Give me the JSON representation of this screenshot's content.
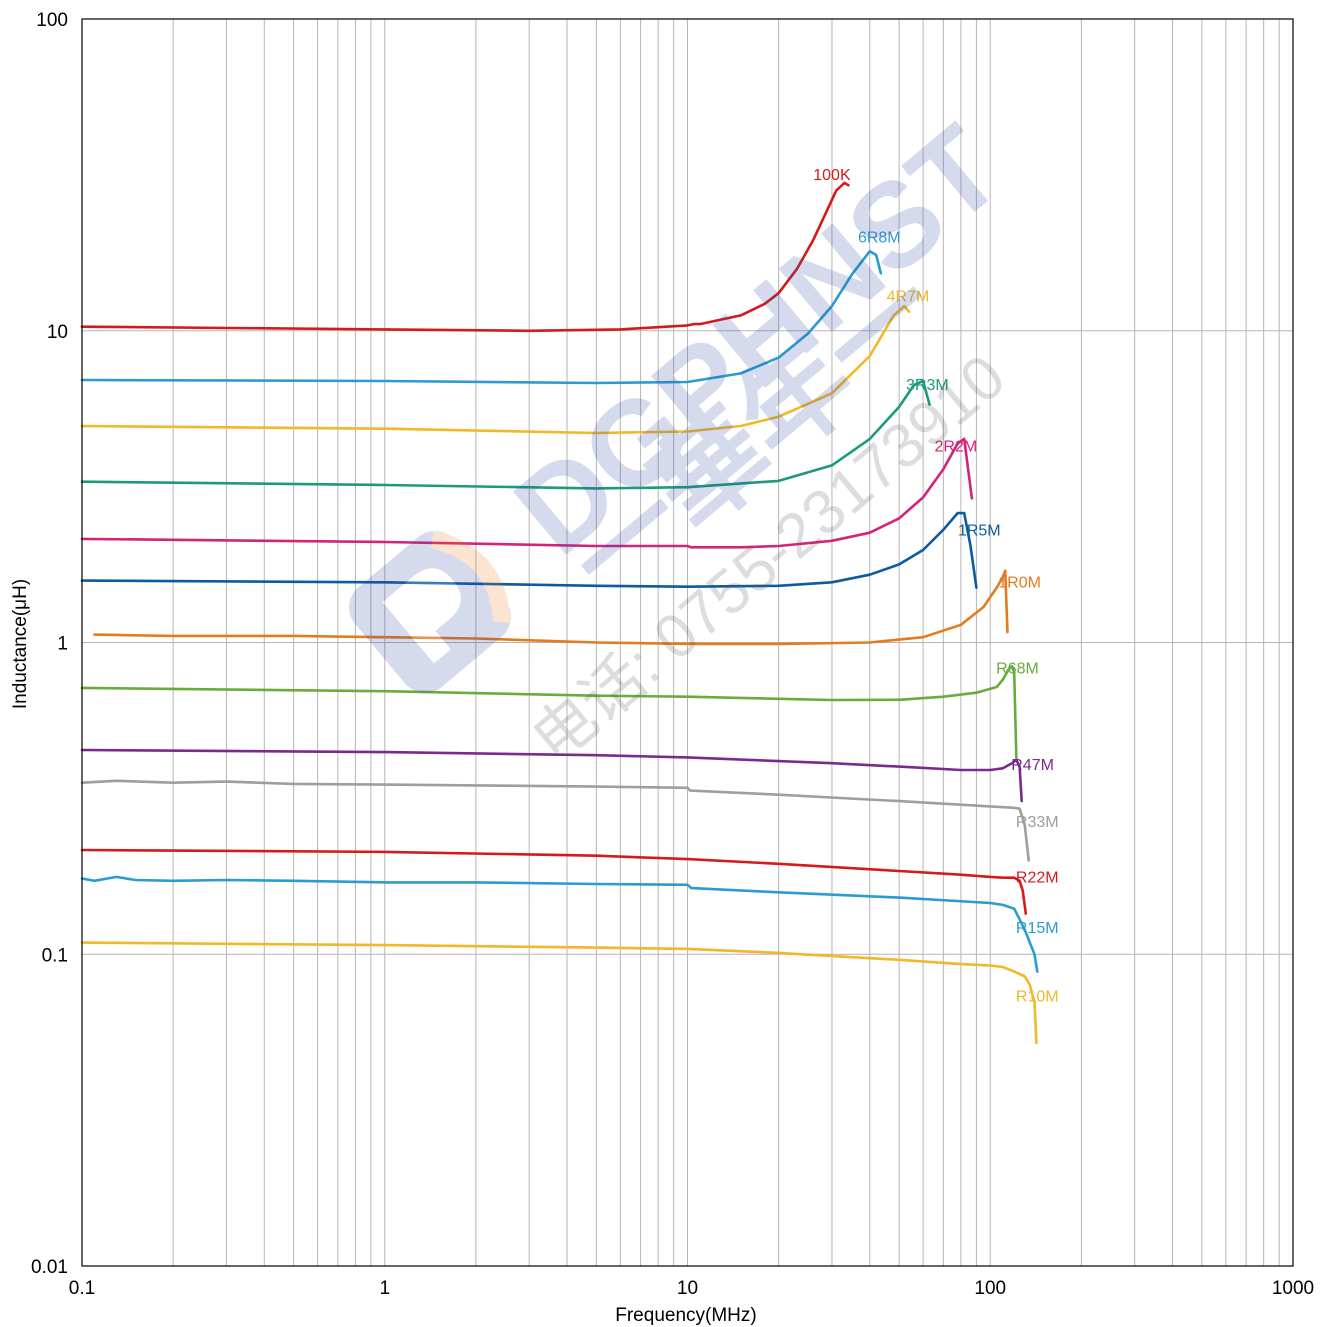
{
  "chart_data": {
    "type": "line",
    "xscale": "log",
    "yscale": "log",
    "title": "",
    "xlabel": "Frequency(MHz)",
    "ylabel": "Inductance(μH)",
    "xlim": [
      0.1,
      1000
    ],
    "ylim": [
      0.01,
      100
    ],
    "grid": true,
    "legend": "inline labels at curve ends",
    "x_ticks": [
      {
        "value": 0.1,
        "label": "0.1"
      },
      {
        "value": 1,
        "label": "1"
      },
      {
        "value": 10,
        "label": "10"
      },
      {
        "value": 100,
        "label": "100"
      },
      {
        "value": 1000,
        "label": "1000"
      }
    ],
    "y_ticks": [
      {
        "value": 0.01,
        "label": "0.01"
      },
      {
        "value": 0.1,
        "label": "0.1"
      },
      {
        "value": 1,
        "label": "1"
      },
      {
        "value": 10,
        "label": "10"
      },
      {
        "value": 100,
        "label": "100"
      }
    ],
    "series": [
      {
        "name": "100K",
        "color": "#d7191c",
        "label_at": [
          30,
          30.5
        ],
        "x": [
          0.1,
          1,
          3,
          6,
          10,
          10.5,
          11,
          12,
          15,
          18,
          20,
          23,
          26,
          29,
          31,
          33,
          34
        ],
        "y": [
          10.3,
          10.1,
          10.0,
          10.1,
          10.4,
          10.5,
          10.5,
          10.7,
          11.2,
          12.2,
          13.2,
          15.8,
          19.5,
          24.5,
          28.2,
          29.8,
          29.3
        ]
      },
      {
        "name": "6R8M",
        "color": "#2b9bd3",
        "label_at": [
          43,
          19.2
        ],
        "x": [
          0.1,
          1,
          5,
          10,
          15,
          20,
          25,
          30,
          35,
          40,
          42,
          43.5
        ],
        "y": [
          6.95,
          6.9,
          6.8,
          6.85,
          7.3,
          8.2,
          9.8,
          12.0,
          15.2,
          18.0,
          17.5,
          15.3
        ]
      },
      {
        "name": "4R7M",
        "color": "#f1b828",
        "label_at": [
          53.5,
          12.4
        ],
        "x": [
          0.1,
          1,
          5,
          10,
          15,
          20,
          30,
          40,
          48,
          52,
          54
        ],
        "y": [
          4.95,
          4.85,
          4.7,
          4.75,
          4.95,
          5.3,
          6.3,
          8.3,
          11.2,
          12.0,
          11.5
        ]
      },
      {
        "name": "3R3M",
        "color": "#1c9a7c",
        "label_at": [
          62,
          6.45
        ],
        "x": [
          0.1,
          1,
          5,
          10,
          20,
          30,
          40,
          50,
          56,
          60,
          63
        ],
        "y": [
          3.28,
          3.2,
          3.12,
          3.15,
          3.3,
          3.7,
          4.5,
          5.7,
          6.7,
          6.9,
          5.8
        ]
      },
      {
        "name": "2R2M",
        "color": "#d4237a",
        "label_at": [
          77,
          4.1
        ],
        "x": [
          0.1,
          1,
          5,
          10,
          10.3,
          15,
          20,
          30,
          40,
          50,
          60,
          70,
          78,
          82,
          87
        ],
        "y": [
          2.15,
          2.1,
          2.04,
          2.04,
          2.02,
          2.02,
          2.04,
          2.12,
          2.25,
          2.5,
          2.92,
          3.6,
          4.35,
          4.5,
          2.9
        ]
      },
      {
        "name": "1R5M",
        "color": "#0d5b9f",
        "label_at": [
          92,
          2.2
        ],
        "x": [
          0.1,
          1,
          5,
          10,
          20,
          30,
          40,
          50,
          60,
          70,
          78,
          82,
          86,
          90
        ],
        "y": [
          1.58,
          1.56,
          1.52,
          1.51,
          1.52,
          1.56,
          1.65,
          1.78,
          1.98,
          2.3,
          2.6,
          2.6,
          2.05,
          1.5
        ]
      },
      {
        "name": "1R0M",
        "color": "#e47b1f",
        "label_at": [
          125,
          1.5
        ],
        "x": [
          0.11,
          0.2,
          0.5,
          1,
          2,
          5,
          10,
          20,
          40,
          60,
          80,
          95,
          105,
          110,
          112,
          114
        ],
        "y": [
          1.06,
          1.05,
          1.05,
          1.04,
          1.03,
          1.0,
          0.99,
          0.99,
          1.0,
          1.04,
          1.14,
          1.3,
          1.5,
          1.62,
          1.7,
          1.08
        ]
      },
      {
        "name": "R68M",
        "color": "#6aac3c",
        "label_at": [
          123,
          0.795
        ],
        "x": [
          0.1,
          1,
          5,
          10,
          20,
          30,
          50,
          70,
          90,
          105,
          110,
          115,
          118,
          120,
          122
        ],
        "y": [
          0.715,
          0.698,
          0.675,
          0.67,
          0.66,
          0.654,
          0.655,
          0.67,
          0.69,
          0.72,
          0.76,
          0.82,
          0.84,
          0.8,
          0.42
        ]
      },
      {
        "name": "R47M",
        "color": "#7b2a8b",
        "label_at": [
          138,
          0.39
        ],
        "x": [
          0.1,
          1,
          5,
          10,
          30,
          50,
          80,
          100,
          110,
          118,
          122,
          125,
          127
        ],
        "y": [
          0.452,
          0.445,
          0.435,
          0.428,
          0.41,
          0.4,
          0.39,
          0.39,
          0.395,
          0.41,
          0.42,
          0.4,
          0.31
        ]
      },
      {
        "name": "R33M",
        "color": "#9e9e9e",
        "label_at": [
          143,
          0.256
        ],
        "x": [
          0.1,
          0.13,
          0.2,
          0.3,
          0.5,
          1,
          2,
          5,
          10,
          10.2,
          20,
          50,
          100,
          120,
          125,
          130,
          134
        ],
        "y": [
          0.355,
          0.36,
          0.355,
          0.358,
          0.352,
          0.35,
          0.348,
          0.345,
          0.342,
          0.335,
          0.325,
          0.31,
          0.298,
          0.295,
          0.293,
          0.26,
          0.2
        ]
      },
      {
        "name": "R22M",
        "color": "#d7191c",
        "label_at": [
          143,
          0.17
        ],
        "x": [
          0.1,
          1,
          5,
          10,
          20,
          50,
          80,
          100,
          110,
          120,
          125,
          128,
          131
        ],
        "y": [
          0.216,
          0.213,
          0.207,
          0.202,
          0.195,
          0.185,
          0.18,
          0.177,
          0.176,
          0.176,
          0.172,
          0.16,
          0.135
        ]
      },
      {
        "name": "R15M",
        "color": "#2b9bd3",
        "label_at": [
          143,
          0.117
        ],
        "x": [
          0.1,
          0.11,
          0.13,
          0.15,
          0.2,
          0.3,
          0.5,
          1,
          2,
          5,
          10,
          10.3,
          20,
          50,
          100,
          110,
          120,
          130,
          140,
          143
        ],
        "y": [
          0.175,
          0.172,
          0.177,
          0.173,
          0.172,
          0.173,
          0.172,
          0.17,
          0.17,
          0.168,
          0.167,
          0.163,
          0.158,
          0.152,
          0.146,
          0.144,
          0.14,
          0.12,
          0.1,
          0.088
        ]
      },
      {
        "name": "R10M",
        "color": "#f1b828",
        "label_at": [
          143,
          0.0705
        ],
        "x": [
          0.1,
          1,
          5,
          10,
          20,
          50,
          80,
          100,
          110,
          120,
          130,
          135,
          140,
          142
        ],
        "y": [
          0.109,
          0.107,
          0.105,
          0.104,
          0.101,
          0.096,
          0.093,
          0.092,
          0.091,
          0.088,
          0.085,
          0.08,
          0.07,
          0.052
        ]
      }
    ]
  },
  "watermark": {
    "brand": "DGPHNST",
    "chinese": "一華年一",
    "phone": "电话: 0755-23173910",
    "colors": {
      "blue": "#2f4aa3",
      "orange": "#f07a22"
    }
  }
}
